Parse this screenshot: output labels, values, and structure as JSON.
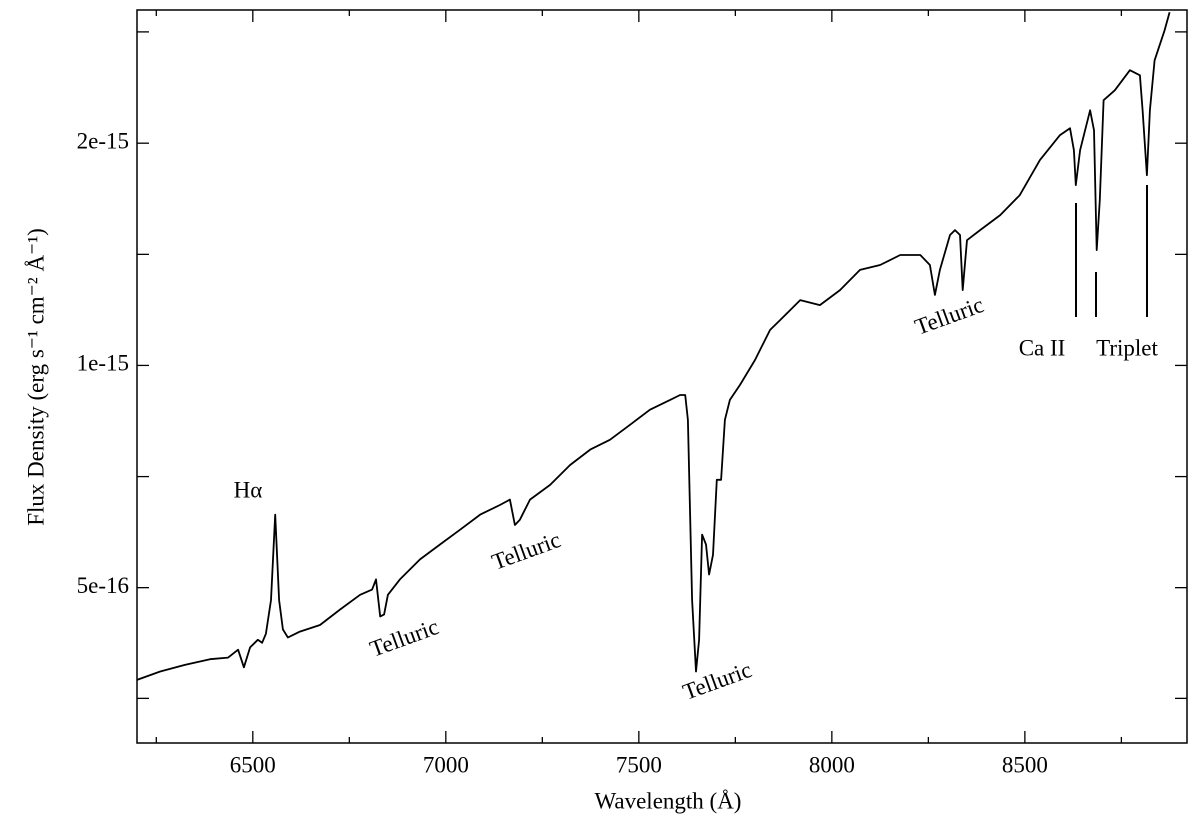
{
  "chart_data": {
    "type": "line",
    "x_label": "Wavelength (Å)",
    "y_label": "Flux Density (erg s⁻¹ cm⁻² Å⁻¹)",
    "x": [
      6200,
      6260,
      6324,
      6389,
      6436,
      6462,
      6477,
      6493,
      6513,
      6524,
      6534,
      6547,
      6558,
      6568,
      6578,
      6591,
      6622,
      6674,
      6726,
      6778,
      6809,
      6819,
      6830,
      6840,
      6850,
      6881,
      6933,
      6985,
      7037,
      7089,
      7140,
      7166,
      7179,
      7192,
      7218,
      7270,
      7322,
      7374,
      7425,
      7477,
      7529,
      7581,
      7607,
      7620,
      7627,
      7638,
      7648,
      7656,
      7664,
      7674,
      7682,
      7692,
      7702,
      7713,
      7723,
      7736,
      7762,
      7801,
      7840,
      7866,
      7918,
      7969,
      8021,
      8073,
      8125,
      8177,
      8229,
      8254,
      8267,
      8280,
      8306,
      8319,
      8332,
      8339,
      8350,
      8384,
      8436,
      8487,
      8539,
      8591,
      8617,
      8627,
      8632,
      8643,
      8669,
      8679,
      8686,
      8694,
      8704,
      8733,
      8772,
      8798,
      8805,
      8816,
      8824,
      8836,
      8862,
      8875
    ],
    "values": [
      3.75e-16,
      3.85e-16,
      3.93e-16,
      4e-16,
      4.02e-16,
      4.12e-16,
      3.9e-16,
      4.15e-16,
      4.25e-16,
      4.21e-16,
      4.33e-16,
      4.81e-16,
      6.28e-16,
      4.81e-16,
      4.39e-16,
      4.28e-16,
      4.36e-16,
      4.45e-16,
      4.67e-16,
      4.89e-16,
      4.97e-16,
      5.13e-16,
      4.57e-16,
      4.6e-16,
      4.89e-16,
      5.13e-16,
      5.46e-16,
      5.72e-16,
      5.99e-16,
      6.28e-16,
      6.47e-16,
      6.58e-16,
      6.08e-16,
      6.18e-16,
      6.58e-16,
      6.89e-16,
      7.33e-16,
      7.69e-16,
      7.93e-16,
      8.31e-16,
      8.71e-16,
      8.98e-16,
      9.12e-16,
      9.12e-16,
      8.44e-16,
      4.81e-16,
      3.85e-16,
      4.25e-16,
      5.9e-16,
      5.72e-16,
      5.21e-16,
      5.54e-16,
      7e-16,
      7e-16,
      8.44e-16,
      8.98e-16,
      9.41e-16,
      1.017e-15,
      1.117e-15,
      1.152e-15,
      1.226e-15,
      1.207e-15,
      1.265e-15,
      1.347e-15,
      1.368e-15,
      1.411e-15,
      1.411e-15,
      1.368e-15,
      1.246e-15,
      1.347e-15,
      1.502e-15,
      1.525e-15,
      1.502e-15,
      1.265e-15,
      1.478e-15,
      1.525e-15,
      1.598e-15,
      1.701e-15,
      1.897e-15,
      2.051e-15,
      2.096e-15,
      1.957e-15,
      1.755e-15,
      1.957e-15,
      2.216e-15,
      2.083e-15,
      1.433e-15,
      1.675e-15,
      2.287e-15,
      2.359e-15,
      2.511e-15,
      2.472e-15,
      2.216e-15,
      1.81e-15,
      2.216e-15,
      2.59e-15,
      2.844e-15,
      3.008e-15
    ],
    "color": "#000000",
    "xlim": [
      6200,
      8920
    ],
    "xticks": [
      6500,
      7000,
      7500,
      8000,
      8500
    ],
    "xminorticks": [
      6250,
      6750,
      7250,
      7750,
      8250,
      8750
    ],
    "ylim": [
      3.08e-16,
      3.03e-15
    ],
    "yticks": [
      5e-16,
      1e-15,
      2e-15
    ],
    "yminorticks": [
      3.54e-16,
      7.07e-16,
      1.414e-15,
      2.83e-15
    ],
    "y_scale": "log",
    "annotations": [
      "Hα",
      "Telluric",
      "Telluric",
      "Telluric",
      "Telluric",
      "Ca II",
      "Triplet"
    ]
  }
}
